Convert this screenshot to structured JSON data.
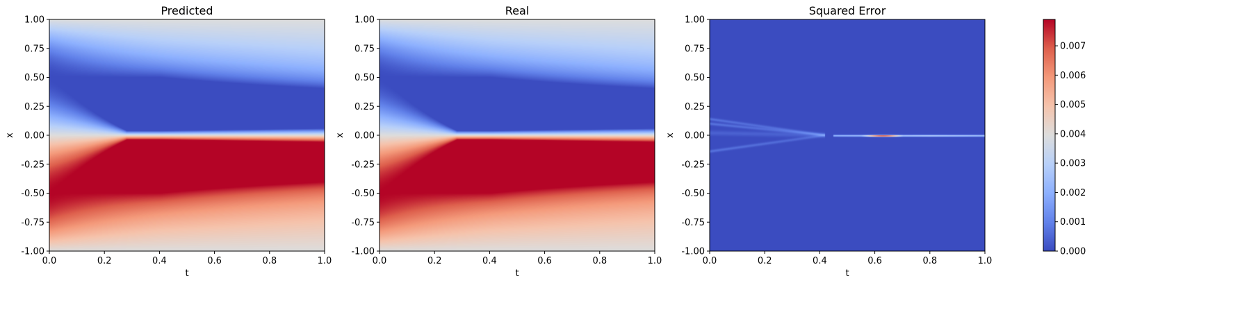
{
  "chart_data": [
    {
      "type": "heatmap",
      "title": "Predicted",
      "xlabel": "t",
      "ylabel": "x",
      "xlim": [
        0.0,
        1.0
      ],
      "ylim": [
        -1.0,
        1.0
      ],
      "xticks": [
        "0.0",
        "0.2",
        "0.4",
        "0.6",
        "0.8",
        "1.0"
      ],
      "yticks": [
        "1.00",
        "0.75",
        "0.50",
        "0.25",
        "0.00",
        "-0.25",
        "-0.50",
        "-0.75",
        "-1.00"
      ],
      "colormap": "coolwarm",
      "value_range": [
        -1.0,
        1.0
      ],
      "field": "Burgers solution u(t,x): negative for x>0, positive for x<0, shock along x=0 forming near t=0.4"
    },
    {
      "type": "heatmap",
      "title": "Real",
      "xlabel": "t",
      "ylabel": "x",
      "xlim": [
        0.0,
        1.0
      ],
      "ylim": [
        -1.0,
        1.0
      ],
      "xticks": [
        "0.0",
        "0.2",
        "0.4",
        "0.6",
        "0.8",
        "1.0"
      ],
      "yticks": [
        "1.00",
        "0.75",
        "0.50",
        "0.25",
        "0.00",
        "-0.25",
        "-0.50",
        "-0.75",
        "-1.00"
      ],
      "colormap": "coolwarm",
      "value_range": [
        -1.0,
        1.0
      ],
      "field": "Burgers solution u(t,x): negative for x>0, positive for x<0, shock along x=0 forming near t=0.4"
    },
    {
      "type": "heatmap",
      "title": "Squared Error",
      "xlabel": "t",
      "ylabel": "x",
      "xlim": [
        0.0,
        1.0
      ],
      "ylim": [
        -1.0,
        1.0
      ],
      "xticks": [
        "0.0",
        "0.2",
        "0.4",
        "0.6",
        "0.8",
        "1.0"
      ],
      "yticks": [
        "1.00",
        "0.75",
        "0.50",
        "0.25",
        "0.00",
        "-0.25",
        "-0.50",
        "-0.75",
        "-1.00"
      ],
      "colormap": "coolwarm",
      "value_range": [
        0.0,
        0.0079
      ],
      "field": "near zero everywhere; faint streaks converging to x=0 near t=0.4; maximum (~0.0079) along x=0 at t 0.55-0.7"
    }
  ],
  "colorbar": {
    "colormap": "coolwarm",
    "range": [
      0.0,
      0.0079
    ],
    "ticks": [
      "0.000",
      "0.001",
      "0.002",
      "0.003",
      "0.004",
      "0.005",
      "0.006",
      "0.007"
    ],
    "tick_values": [
      0.0,
      0.001,
      0.002,
      0.003,
      0.004,
      0.005,
      0.006,
      0.007
    ]
  }
}
